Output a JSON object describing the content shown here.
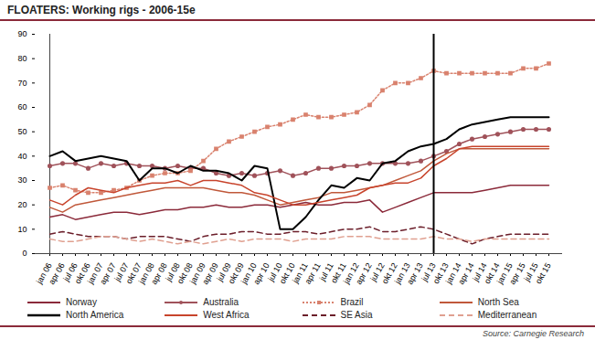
{
  "chart_data": {
    "type": "line",
    "title": "FLOATERS: Working rigs - 2006-15e",
    "source": "Source: Carnegie Research",
    "x": [
      "jan 06",
      "apr 06",
      "jul 06",
      "okt 06",
      "jan 07",
      "apr 07",
      "jul 07",
      "okt 07",
      "jan 08",
      "apr 08",
      "jul 08",
      "okt 08",
      "jan 09",
      "apr 09",
      "jul 09",
      "okt 09",
      "jan 10",
      "apr 10",
      "jul 10",
      "okt 10",
      "jan 11",
      "apr 11",
      "jul 11",
      "okt 11",
      "jan 12",
      "apr 12",
      "jul 12",
      "okt 12",
      "jan 13",
      "apr 13",
      "jul 13",
      "okt 13",
      "jan 14",
      "apr 14",
      "jul 14",
      "okt 14",
      "jan 15",
      "apr 15",
      "jul 15",
      "okt 15"
    ],
    "forecast_start": "jul 13",
    "ylim": [
      0,
      90
    ],
    "yticks": [
      0,
      10,
      20,
      30,
      40,
      50,
      60,
      70,
      80,
      90
    ],
    "grid": false,
    "legend": "bottom",
    "series": [
      {
        "name": "Norway",
        "color": "#8b2a3a",
        "line_style": "solid",
        "marker": "none",
        "values": [
          15,
          16,
          14,
          15,
          16,
          17,
          17,
          16,
          17,
          18,
          18,
          19,
          19,
          20,
          19,
          19,
          20,
          20,
          19,
          20,
          21,
          20,
          20,
          21,
          21,
          22,
          17,
          19,
          21,
          23,
          25,
          25,
          25,
          25,
          26,
          27,
          28,
          28,
          28,
          28
        ]
      },
      {
        "name": "Australia",
        "color": "#a0525a",
        "line_style": "solid",
        "marker": "circle",
        "values": [
          36,
          37,
          37,
          35,
          37,
          36,
          37,
          36,
          36,
          35,
          36,
          35,
          35,
          33,
          32,
          33,
          32,
          33,
          34,
          32,
          33,
          35,
          35,
          36,
          36,
          37,
          37,
          37,
          37,
          38,
          40,
          42,
          45,
          47,
          48,
          49,
          50,
          51,
          51,
          51
        ]
      },
      {
        "name": "Brazil",
        "color": "#d9826e",
        "line_style": "dotted",
        "marker": "square",
        "values": [
          27,
          28,
          26,
          25,
          25,
          26,
          27,
          30,
          32,
          33,
          33,
          34,
          38,
          43,
          46,
          48,
          50,
          52,
          53,
          55,
          57,
          56,
          56,
          57,
          58,
          61,
          67,
          70,
          70,
          72,
          75,
          74,
          74,
          74,
          74,
          74,
          74,
          76,
          76,
          78
        ]
      },
      {
        "name": "North Sea",
        "color": "#c0583a",
        "line_style": "solid",
        "marker": "none",
        "values": [
          19,
          17,
          20,
          21,
          22,
          23,
          24,
          25,
          26,
          27,
          27,
          27,
          27,
          26,
          25,
          25,
          24,
          22,
          20,
          21,
          22,
          23,
          25,
          25,
          26,
          27,
          28,
          30,
          32,
          34,
          38,
          41,
          43,
          43,
          43,
          43,
          43,
          43,
          43,
          43
        ]
      },
      {
        "name": "North America",
        "color": "#000000",
        "line_style": "solid",
        "marker": "none",
        "values": [
          40,
          42,
          38,
          39,
          40,
          39,
          38,
          30,
          35,
          35,
          33,
          36,
          34,
          34,
          33,
          30,
          36,
          35,
          10,
          10,
          15,
          22,
          28,
          27,
          31,
          30,
          37,
          38,
          42,
          44,
          45,
          47,
          51,
          53,
          54,
          55,
          56,
          56,
          56,
          56
        ]
      },
      {
        "name": "West Africa",
        "color": "#c8442c",
        "line_style": "solid",
        "marker": "none",
        "values": [
          22,
          20,
          24,
          27,
          26,
          25,
          27,
          28,
          29,
          29,
          30,
          28,
          30,
          30,
          29,
          28,
          25,
          24,
          22,
          20,
          20,
          21,
          22,
          23,
          24,
          27,
          28,
          29,
          29,
          31,
          36,
          39,
          43,
          44,
          44,
          44,
          44,
          44,
          44,
          44
        ]
      },
      {
        "name": "SE Asia",
        "color": "#6b1e2a",
        "line_style": "dashed",
        "marker": "none",
        "values": [
          8,
          9,
          8,
          7,
          7,
          7,
          6,
          7,
          7,
          7,
          6,
          5,
          7,
          8,
          8,
          9,
          9,
          8,
          8,
          9,
          9,
          8,
          9,
          10,
          10,
          11,
          9,
          9,
          10,
          11,
          10,
          8,
          6,
          4,
          6,
          7,
          8,
          8,
          8,
          8
        ]
      },
      {
        "name": "Mediterranean",
        "color": "#e0a090",
        "line_style": "dashed",
        "marker": "none",
        "values": [
          6,
          5,
          5,
          6,
          7,
          7,
          6,
          5,
          6,
          5,
          4,
          5,
          4,
          5,
          6,
          5,
          6,
          6,
          6,
          5,
          6,
          6,
          6,
          7,
          7,
          7,
          6,
          6,
          6,
          6,
          7,
          6,
          6,
          5,
          6,
          6,
          6,
          6,
          6,
          6
        ]
      }
    ]
  }
}
